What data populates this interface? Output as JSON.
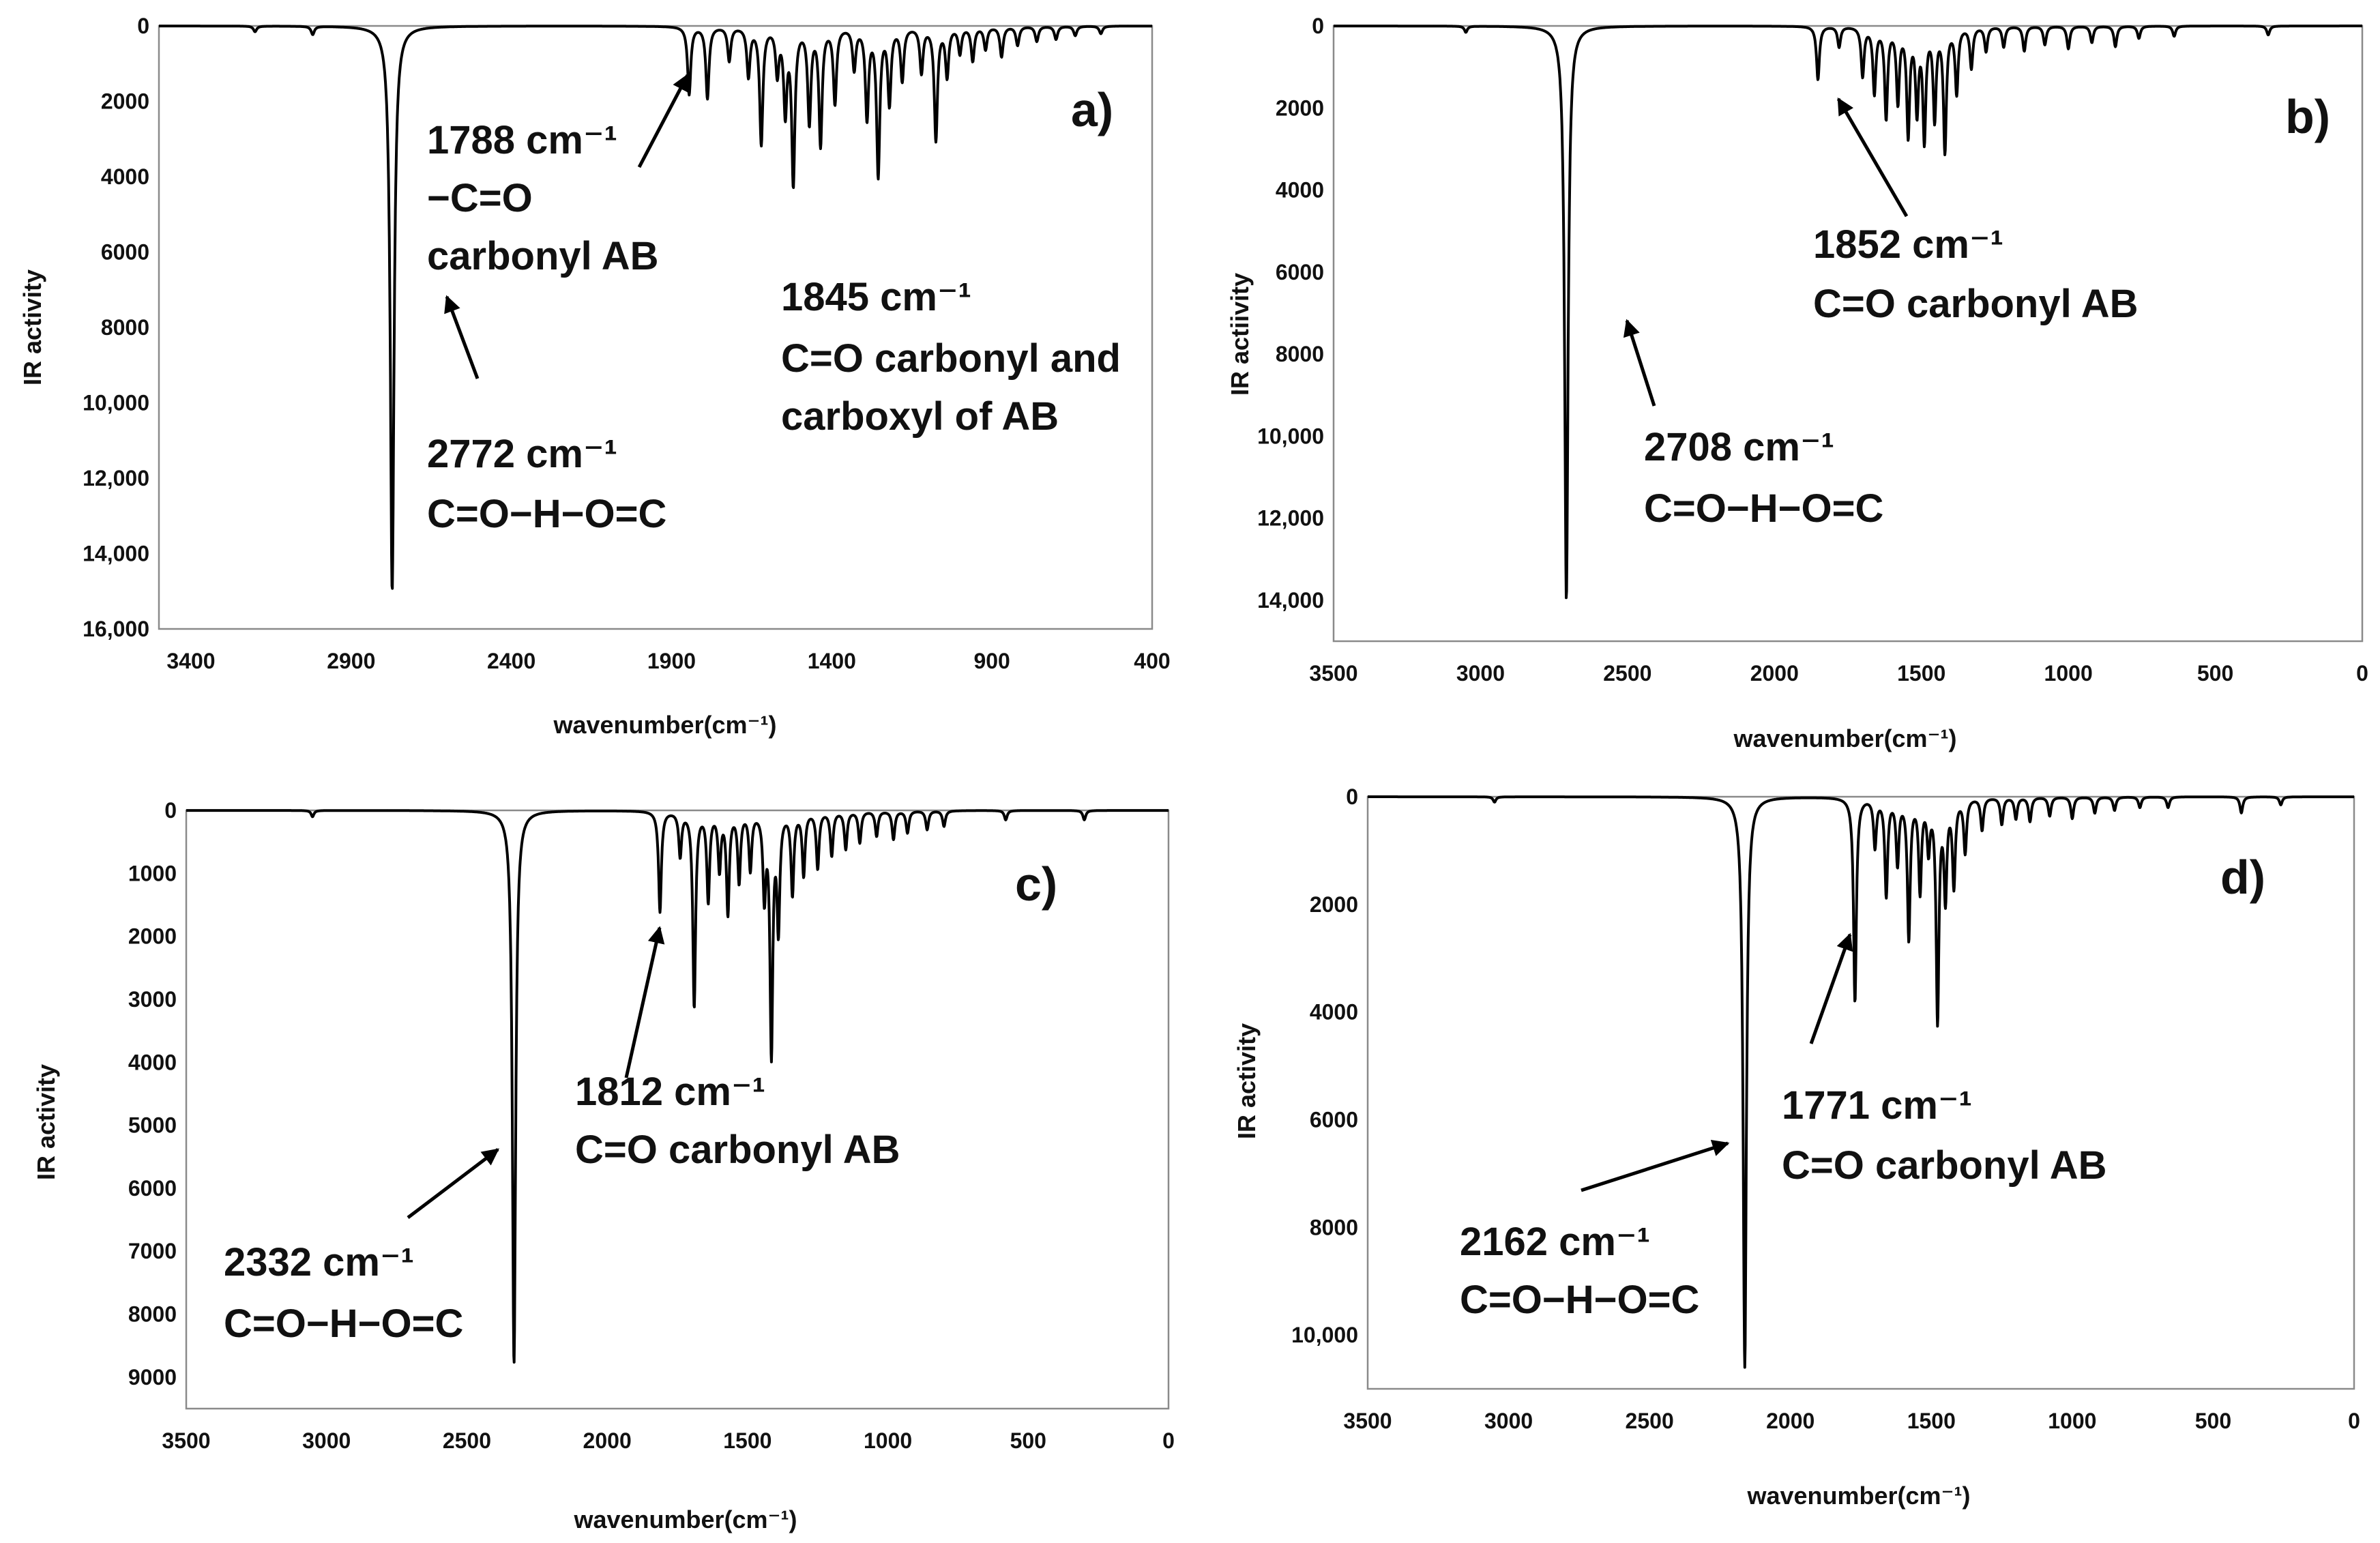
{
  "chart_data": [
    {
      "type": "line",
      "panel_label": "a)",
      "xlabel": "wavenumber(cm⁻¹)",
      "ylabel": "IR activity",
      "xlim": [
        3500,
        400
      ],
      "ylim": [
        0,
        16000
      ],
      "x_ticks": [
        "3400",
        "2900",
        "2400",
        "1900",
        "1400",
        "900",
        "400"
      ],
      "y_ticks": [
        "0",
        "2000",
        "4000",
        "6000",
        "8000",
        "10,000",
        "12,000",
        "14,000",
        "16,000"
      ],
      "peaks": [
        {
          "x": 3200,
          "y": 150
        },
        {
          "x": 3020,
          "y": 220
        },
        {
          "x": 2772,
          "y": 15000
        },
        {
          "x": 1845,
          "y": 1800
        },
        {
          "x": 1788,
          "y": 1900
        },
        {
          "x": 1720,
          "y": 900
        },
        {
          "x": 1660,
          "y": 1300
        },
        {
          "x": 1620,
          "y": 3100
        },
        {
          "x": 1570,
          "y": 1200
        },
        {
          "x": 1545,
          "y": 2200
        },
        {
          "x": 1520,
          "y": 4100
        },
        {
          "x": 1470,
          "y": 2500
        },
        {
          "x": 1435,
          "y": 3100
        },
        {
          "x": 1390,
          "y": 2000
        },
        {
          "x": 1330,
          "y": 1100
        },
        {
          "x": 1290,
          "y": 2400
        },
        {
          "x": 1255,
          "y": 3900
        },
        {
          "x": 1220,
          "y": 2000
        },
        {
          "x": 1180,
          "y": 1400
        },
        {
          "x": 1120,
          "y": 1200
        },
        {
          "x": 1075,
          "y": 3000
        },
        {
          "x": 1040,
          "y": 1300
        },
        {
          "x": 1000,
          "y": 700
        },
        {
          "x": 960,
          "y": 900
        },
        {
          "x": 920,
          "y": 600
        },
        {
          "x": 870,
          "y": 800
        },
        {
          "x": 820,
          "y": 500
        },
        {
          "x": 760,
          "y": 400
        },
        {
          "x": 700,
          "y": 350
        },
        {
          "x": 640,
          "y": 250
        },
        {
          "x": 560,
          "y": 200
        }
      ],
      "annotations": [
        {
          "lines": [
            "1788 cm⁻¹",
            "−C=O",
            "carbonyl AB"
          ],
          "points_to": {
            "x": 1790,
            "y": 1900
          }
        },
        {
          "lines": [
            "1845 cm⁻¹",
            "C=O carbonyl and",
            "carboxyl of AB"
          ]
        },
        {
          "lines": [
            "2772 cm⁻¹",
            "C=O−H−O=C"
          ],
          "points_to": {
            "x": 2680,
            "y": 7200
          }
        }
      ]
    },
    {
      "type": "line",
      "panel_label": "b)",
      "xlabel": "wavenumber(cm⁻¹)",
      "ylabel": "IR actiivity",
      "xlim": [
        3500,
        0
      ],
      "ylim": [
        0,
        15000
      ],
      "x_ticks": [
        "3500",
        "3000",
        "2500",
        "2000",
        "1500",
        "1000",
        "500",
        "0"
      ],
      "y_ticks": [
        "0",
        "2000",
        "4000",
        "6000",
        "8000",
        "10,000",
        "12,000",
        "14,000"
      ],
      "peaks": [
        {
          "x": 3050,
          "y": 150
        },
        {
          "x": 2708,
          "y": 14000
        },
        {
          "x": 1852,
          "y": 1300
        },
        {
          "x": 1780,
          "y": 500
        },
        {
          "x": 1700,
          "y": 1200
        },
        {
          "x": 1660,
          "y": 1600
        },
        {
          "x": 1620,
          "y": 2200
        },
        {
          "x": 1580,
          "y": 1800
        },
        {
          "x": 1545,
          "y": 2600
        },
        {
          "x": 1515,
          "y": 2000
        },
        {
          "x": 1490,
          "y": 2700
        },
        {
          "x": 1455,
          "y": 2200
        },
        {
          "x": 1420,
          "y": 3000
        },
        {
          "x": 1380,
          "y": 1600
        },
        {
          "x": 1330,
          "y": 1000
        },
        {
          "x": 1280,
          "y": 600
        },
        {
          "x": 1220,
          "y": 500
        },
        {
          "x": 1150,
          "y": 600
        },
        {
          "x": 1080,
          "y": 450
        },
        {
          "x": 1000,
          "y": 550
        },
        {
          "x": 920,
          "y": 400
        },
        {
          "x": 840,
          "y": 500
        },
        {
          "x": 760,
          "y": 300
        },
        {
          "x": 640,
          "y": 250
        },
        {
          "x": 320,
          "y": 220
        }
      ],
      "annotations": [
        {
          "lines": [
            "1852 cm⁻¹",
            "C=O  carbonyl AB"
          ],
          "points_to": {
            "x": 1880,
            "y": 1800
          }
        },
        {
          "lines": [
            "2708 cm⁻¹",
            "C=O−H−O=C"
          ],
          "points_to": {
            "x": 2620,
            "y": 7100
          }
        }
      ]
    },
    {
      "type": "line",
      "panel_label": "c)",
      "xlabel": "wavenumber(cm⁻¹)",
      "ylabel": "IR activity",
      "xlim": [
        3500,
        0
      ],
      "ylim": [
        0,
        9500
      ],
      "x_ticks": [
        "3500",
        "3000",
        "2500",
        "2000",
        "1500",
        "1000",
        "500",
        "0"
      ],
      "y_ticks": [
        "0",
        "1000",
        "2000",
        "3000",
        "4000",
        "5000",
        "6000",
        "7000",
        "8000",
        "9000"
      ],
      "peaks": [
        {
          "x": 3050,
          "y": 100
        },
        {
          "x": 2332,
          "y": 8800
        },
        {
          "x": 1812,
          "y": 1600
        },
        {
          "x": 1740,
          "y": 700
        },
        {
          "x": 1690,
          "y": 3100
        },
        {
          "x": 1640,
          "y": 1400
        },
        {
          "x": 1600,
          "y": 900
        },
        {
          "x": 1570,
          "y": 1600
        },
        {
          "x": 1530,
          "y": 1100
        },
        {
          "x": 1490,
          "y": 900
        },
        {
          "x": 1440,
          "y": 1300
        },
        {
          "x": 1415,
          "y": 3800
        },
        {
          "x": 1390,
          "y": 1800
        },
        {
          "x": 1340,
          "y": 1300
        },
        {
          "x": 1300,
          "y": 1000
        },
        {
          "x": 1250,
          "y": 900
        },
        {
          "x": 1200,
          "y": 700
        },
        {
          "x": 1150,
          "y": 600
        },
        {
          "x": 1100,
          "y": 500
        },
        {
          "x": 1040,
          "y": 400
        },
        {
          "x": 980,
          "y": 450
        },
        {
          "x": 930,
          "y": 350
        },
        {
          "x": 860,
          "y": 300
        },
        {
          "x": 800,
          "y": 250
        },
        {
          "x": 580,
          "y": 150
        },
        {
          "x": 300,
          "y": 150
        }
      ],
      "annotations": [
        {
          "lines": [
            "1812 cm⁻¹",
            "C=O  carbonyl AB"
          ],
          "points_to": {
            "x": 1820,
            "y": 1900
          }
        },
        {
          "lines": [
            "2332 cm⁻¹",
            "C=O−H−O=C"
          ],
          "points_to": {
            "x": 2350,
            "y": 5300
          }
        }
      ]
    },
    {
      "type": "line",
      "panel_label": "d)",
      "xlabel": "wavenumber(cm⁻¹)",
      "ylabel": "IR activity",
      "xlim": [
        3500,
        0
      ],
      "ylim": [
        0,
        11000
      ],
      "x_ticks": [
        "3500",
        "3000",
        "2500",
        "2000",
        "1500",
        "1000",
        "500",
        "0"
      ],
      "y_ticks": [
        "0",
        "2000",
        "4000",
        "6000",
        "8000",
        "10,000"
      ],
      "peaks": [
        {
          "x": 3050,
          "y": 100
        },
        {
          "x": 2162,
          "y": 10600
        },
        {
          "x": 1771,
          "y": 3800
        },
        {
          "x": 1700,
          "y": 900
        },
        {
          "x": 1660,
          "y": 1800
        },
        {
          "x": 1620,
          "y": 1200
        },
        {
          "x": 1580,
          "y": 2600
        },
        {
          "x": 1540,
          "y": 1700
        },
        {
          "x": 1510,
          "y": 900
        },
        {
          "x": 1478,
          "y": 4100
        },
        {
          "x": 1450,
          "y": 1800
        },
        {
          "x": 1420,
          "y": 1600
        },
        {
          "x": 1380,
          "y": 1000
        },
        {
          "x": 1320,
          "y": 600
        },
        {
          "x": 1250,
          "y": 500
        },
        {
          "x": 1200,
          "y": 400
        },
        {
          "x": 1150,
          "y": 450
        },
        {
          "x": 1080,
          "y": 350
        },
        {
          "x": 1000,
          "y": 400
        },
        {
          "x": 920,
          "y": 300
        },
        {
          "x": 850,
          "y": 250
        },
        {
          "x": 760,
          "y": 200
        },
        {
          "x": 660,
          "y": 200
        },
        {
          "x": 400,
          "y": 300
        },
        {
          "x": 260,
          "y": 150
        }
      ],
      "annotations": [
        {
          "lines": [
            "1771 cm⁻¹",
            "C=O  carbonyl AB"
          ],
          "points_to": {
            "x": 1700,
            "y": 2600
          }
        },
        {
          "lines": [
            "2162 cm⁻¹",
            "C=O−H−O=C"
          ],
          "points_to": {
            "x": 2200,
            "y": 6300
          }
        }
      ]
    }
  ]
}
